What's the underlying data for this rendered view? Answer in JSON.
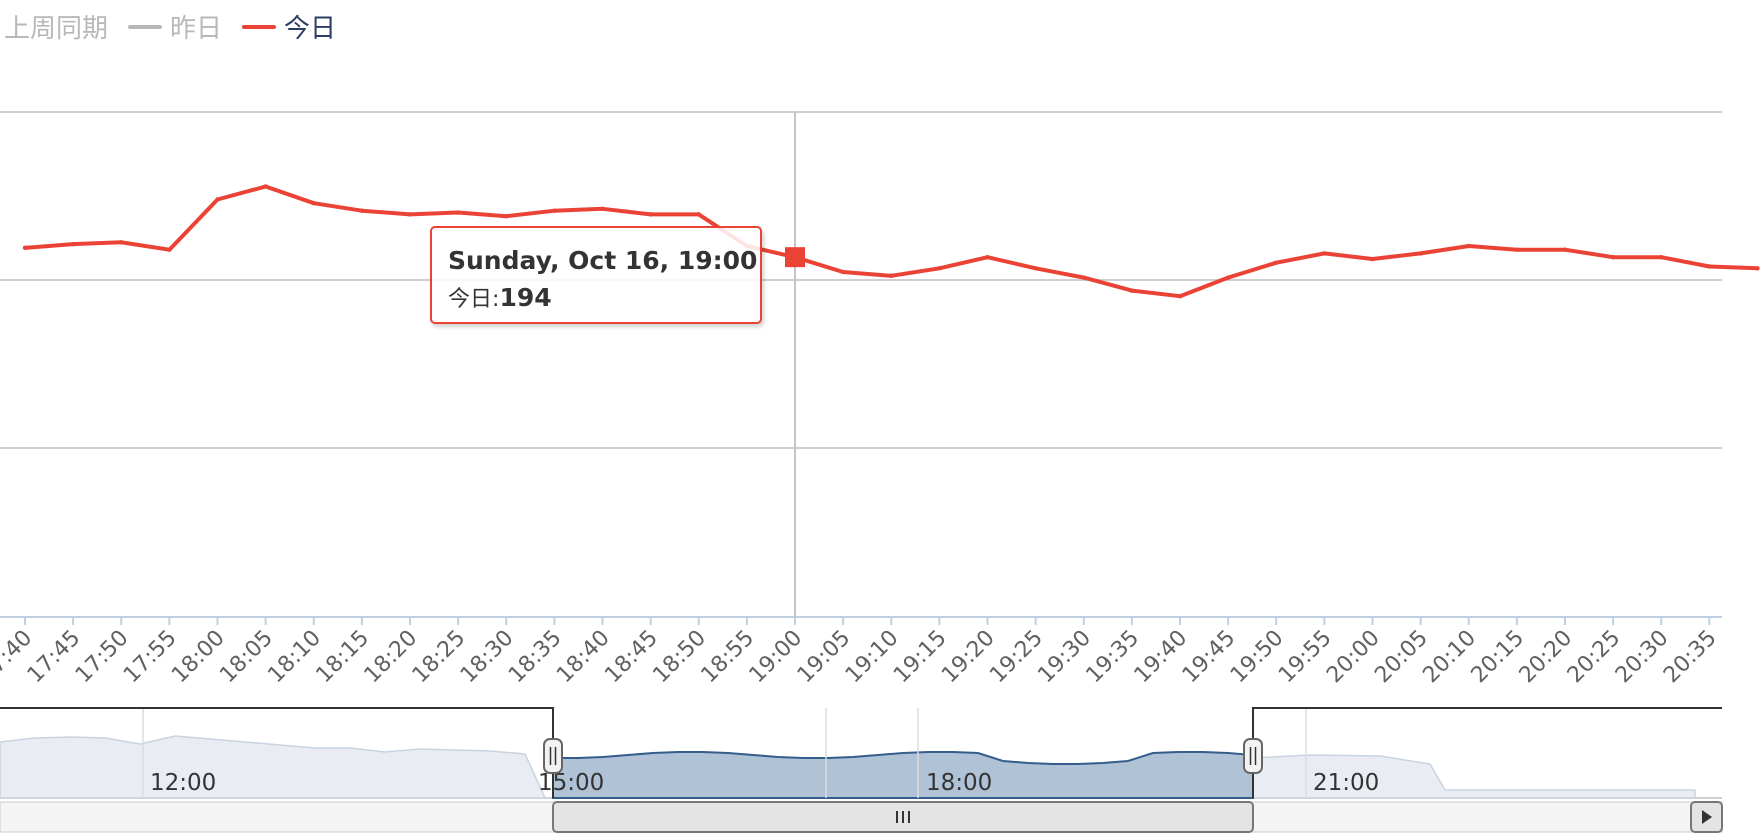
{
  "legend": {
    "items": [
      {
        "label": "上周同期",
        "visible": false,
        "color": "#b8b8b8"
      },
      {
        "label": "昨日",
        "visible": false,
        "color": "#b8b8b8"
      },
      {
        "label": "今日",
        "visible": true,
        "color": "#ea4335"
      }
    ]
  },
  "tooltip": {
    "title": "Sunday, Oct 16, 19:00",
    "series": "今日",
    "separator": ":",
    "value": "194"
  },
  "chart_data": {
    "type": "line",
    "grid": true,
    "crosshair_x": "19:00",
    "x_tick_labels": [
      "17:40",
      "17:45",
      "17:50",
      "17:55",
      "18:00",
      "18:05",
      "18:10",
      "18:15",
      "18:20",
      "18:25",
      "18:30",
      "18:35",
      "18:40",
      "18:45",
      "18:50",
      "18:55",
      "19:00",
      "19:05",
      "19:10",
      "19:15",
      "19:20",
      "19:25",
      "19:30",
      "19:35",
      "19:40",
      "19:45",
      "19:50",
      "19:55",
      "20:00",
      "20:05",
      "20:10",
      "20:15",
      "20:20",
      "20:25",
      "20:30",
      "20:35"
    ],
    "series": [
      {
        "name": "今日",
        "color": "#ea4335",
        "x": [
          "17:40",
          "17:45",
          "17:50",
          "17:55",
          "18:00",
          "18:05",
          "18:10",
          "18:15",
          "18:20",
          "18:25",
          "18:30",
          "18:35",
          "18:40",
          "18:45",
          "18:50",
          "18:55",
          "19:00",
          "19:05",
          "19:10",
          "19:15",
          "19:20",
          "19:25",
          "19:30",
          "19:35",
          "19:40",
          "19:45",
          "19:50",
          "19:55",
          "20:00",
          "20:05",
          "20:10",
          "20:15",
          "20:20",
          "20:25",
          "20:30",
          "20:35",
          "20:40"
        ],
        "values": [
          199,
          201,
          202,
          198,
          225,
          232,
          223,
          219,
          217,
          218,
          216,
          219,
          220,
          217,
          217,
          200,
          194,
          186,
          184,
          188,
          194,
          188,
          183,
          176,
          173,
          183,
          191,
          196,
          193,
          196,
          200,
          198,
          198,
          194,
          194,
          189,
          188
        ],
        "highlight": {
          "x": "19:00",
          "value": 194
        }
      }
    ],
    "navigator": {
      "labels": [
        "12:00",
        "15:00",
        "18:00",
        "21:00"
      ],
      "selected_range": [
        "18:00",
        "20:40"
      ]
    }
  }
}
